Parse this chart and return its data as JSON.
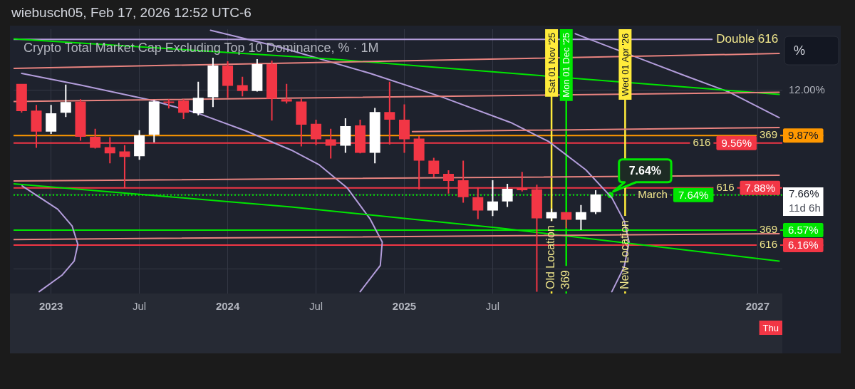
{
  "chart_data": {
    "type": "candlestick",
    "title": "Crypto Total Market Cap Excluding Top 10 Dominance, % · 1M",
    "subtitle": "wiebusch05, Feb 17, 2026 12:52 UTC-6",
    "ylabel": "%",
    "x": [
      "2022-11",
      "2022-12",
      "2023-01",
      "2023-02",
      "2023-03",
      "2023-04",
      "2023-05",
      "2023-06",
      "2023-07",
      "2023-08",
      "2023-09",
      "2023-10",
      "2023-11",
      "2023-12",
      "2024-01",
      "2024-02",
      "2024-03",
      "2024-04",
      "2024-05",
      "2024-06",
      "2024-07",
      "2024-08",
      "2024-09",
      "2024-10",
      "2024-11",
      "2024-12",
      "2025-01",
      "2025-02",
      "2025-03",
      "2025-04",
      "2025-05",
      "2025-06",
      "2025-07",
      "2025-08",
      "2025-09",
      "2025-10",
      "2025-11",
      "2025-12",
      "2026-01",
      "2026-02"
    ],
    "ohlc": [
      [
        12.33,
        12.33,
        10.9,
        10.96
      ],
      [
        10.99,
        11.26,
        9.36,
        10.04
      ],
      [
        10.04,
        11.26,
        9.94,
        10.86
      ],
      [
        10.89,
        12.29,
        10.69,
        11.4
      ],
      [
        11.43,
        11.54,
        9.65,
        9.82
      ],
      [
        9.82,
        10.16,
        9.33,
        9.36
      ],
      [
        9.39,
        9.8,
        8.76,
        9.14
      ],
      [
        9.22,
        9.47,
        7.87,
        9.0
      ],
      [
        9.03,
        10.1,
        8.89,
        9.88
      ],
      [
        9.91,
        11.5,
        9.59,
        11.43
      ],
      [
        11.43,
        11.54,
        11.09,
        11.4
      ],
      [
        11.47,
        11.54,
        10.6,
        10.89
      ],
      [
        10.86,
        12.44,
        10.76,
        11.61
      ],
      [
        11.64,
        13.8,
        11.16,
        13.34
      ],
      [
        13.34,
        13.59,
        11.61,
        12.22
      ],
      [
        12.26,
        12.71,
        11.68,
        11.96
      ],
      [
        11.96,
        13.71,
        11.93,
        13.42
      ],
      [
        13.42,
        13.63,
        10.53,
        11.57
      ],
      [
        11.54,
        12.33,
        11.33,
        11.43
      ],
      [
        11.43,
        11.57,
        9.42,
        10.34
      ],
      [
        10.38,
        10.57,
        9.47,
        9.71
      ],
      [
        9.71,
        10.16,
        8.94,
        9.45
      ],
      [
        9.45,
        10.63,
        9.16,
        10.28
      ],
      [
        10.31,
        10.57,
        9.14,
        9.16
      ],
      [
        9.16,
        11.12,
        8.76,
        10.92
      ],
      [
        10.92,
        12.44,
        9.5,
        10.57
      ],
      [
        10.57,
        11.29,
        9.16,
        9.71
      ],
      [
        9.74,
        9.85,
        7.83,
        8.86
      ],
      [
        8.86,
        8.97,
        8.24,
        8.37
      ],
      [
        8.37,
        8.5,
        7.69,
        8.12
      ],
      [
        8.14,
        8.86,
        7.39,
        7.57
      ],
      [
        7.57,
        7.9,
        6.89,
        7.15
      ],
      [
        7.15,
        8.14,
        6.98,
        7.43
      ],
      [
        7.43,
        8.02,
        7.26,
        7.85
      ],
      [
        7.87,
        8.44,
        7.76,
        7.8
      ],
      [
        7.83,
        7.99,
        5.04,
        6.91
      ],
      [
        6.91,
        7.21,
        6.83,
        7.1
      ],
      [
        7.1,
        7.1,
        6.63,
        6.87
      ],
      [
        6.87,
        7.32,
        6.57,
        7.1
      ],
      [
        7.1,
        7.8,
        7.04,
        7.66
      ]
    ],
    "colors": [
      "#f23645",
      "#f23645",
      "#ffffff",
      "#ffffff",
      "#f23645",
      "#f23645",
      "#f23645",
      "#f23645",
      "#ffffff",
      "#ffffff",
      "#f23645",
      "#f23645",
      "#ffffff",
      "#ffffff",
      "#f23645",
      "#f23645",
      "#ffffff",
      "#f23645",
      "#f23645",
      "#f23645",
      "#f23645",
      "#f23645",
      "#ffffff",
      "#f23645",
      "#ffffff",
      "#f23645",
      "#f23645",
      "#f23645",
      "#f23645",
      "#f23645",
      "#f23645",
      "#f23645",
      "#ffffff",
      "#ffffff",
      "#f23645",
      "#f23645",
      "#ffffff",
      "#f23645",
      "#ffffff",
      "#ffffff"
    ],
    "series": [
      {
        "type": "line",
        "color": "#e8837f",
        "x": [
          "2022-10-15",
          "2027-02-14"
        ],
        "values": [
          13.18,
          14.05
        ]
      },
      {
        "type": "line",
        "color": "#e8837f",
        "x": [
          "2022-10-15",
          "2027-02-14"
        ],
        "values": [
          11.43,
          11.89
        ]
      },
      {
        "type": "line",
        "color": "#e8837f",
        "x": [
          "2025-01-18",
          "2027-02-14"
        ],
        "values": [
          10.04,
          10.22
        ]
      },
      {
        "type": "line",
        "color": "#e8837f",
        "x": [
          "2022-10-15",
          "2027-02-14"
        ],
        "values": [
          8.12,
          8.32
        ]
      },
      {
        "type": "line",
        "color": "#e8837f",
        "x": [
          "2022-10-15",
          "2027-02-14"
        ],
        "values": [
          6.31,
          6.47
        ]
      },
      {
        "type": "line",
        "color": "#00e600",
        "x": [
          "2022-10-15",
          "2024-08-06",
          "2027-02-14"
        ],
        "values": [
          14.97,
          13.71,
          11.78
        ]
      },
      {
        "type": "line",
        "color": "#00e600",
        "x": [
          "2022-10-15",
          "2024-05-11",
          "2025-07-15",
          "2027-02-14"
        ],
        "values": [
          8.02,
          7.26,
          6.63,
          5.75
        ]
      },
      {
        "type": "line",
        "color": "#b39ddb",
        "x": [
          "2022-11-01",
          "2023-03-02",
          "2023-07-25",
          "2023-11-01",
          "2024-02-08",
          "2024-05-11",
          "2024-07-08",
          "2024-09-05",
          "2024-10-22",
          "2024-11-16",
          "2024-11-12",
          "2024-10-01"
        ],
        "values": [
          12.9,
          12.26,
          11.5,
          10.86,
          10.07,
          9.27,
          8.7,
          7.87,
          6.89,
          6.24,
          5.64,
          5.04
        ]
      },
      {
        "type": "line",
        "color": "#b39ddb",
        "x": [
          "2023-11-26",
          "2024-04-12",
          "2024-10-22",
          "2025-03-15",
          "2025-08-08",
          "2025-10-26",
          "2026-01-11",
          "2026-03-04",
          "2026-03-30",
          "2026-04-09",
          "2026-03-30",
          "2026-03-04"
        ],
        "values": [
          15.53,
          14.48,
          12.9,
          11.68,
          10.44,
          9.62,
          8.52,
          7.55,
          6.83,
          6.24,
          5.61,
          5.04
        ]
      },
      {
        "type": "line",
        "color": "#b39ddb",
        "x": [
          "2025-12-20",
          "2026-02-22",
          "2026-05-05",
          "2026-08-01",
          "2026-11-04",
          "2027-02-14"
        ],
        "values": [
          15.3,
          14.52,
          13.71,
          12.79,
          11.89,
          10.66
        ]
      },
      {
        "type": "line",
        "color": "#b39ddb",
        "x": [
          "2022-11-02",
          "2023-01-15",
          "2023-02-13",
          "2023-02-24",
          "2023-02-17",
          "2023-01-24",
          "2022-12-07"
        ],
        "values": [
          7.95,
          7.19,
          6.69,
          6.18,
          5.75,
          5.41,
          5.04
        ]
      },
      {
        "type": "line",
        "name": "Double 616",
        "color": "#b39ddb",
        "x": [
          "2022-10-15",
          "2026-09-28"
        ],
        "values": [
          14.93,
          14.93
        ]
      },
      {
        "type": "scatter",
        "color": "#00e600",
        "marker": "circle",
        "x": [
          "2026-03"
        ],
        "values": [
          7.64
        ],
        "value_labels": [
          "7.64%"
        ]
      }
    ],
    "ref_lines": [
      {
        "axis": "y",
        "value": 9.87,
        "label": "9.87%",
        "color": "#ff9800"
      },
      {
        "axis": "y",
        "value": 9.56,
        "label": "9.56%",
        "color": "#f23645"
      },
      {
        "axis": "y",
        "value": 7.88,
        "label": "7.88%",
        "color": "#f23645"
      },
      {
        "axis": "y",
        "value": 7.64,
        "label": "7.64%",
        "color": "#00e600",
        "line_style": "dotted"
      },
      {
        "axis": "y",
        "value": 6.57,
        "label": "6.57%",
        "color": "#00e600"
      },
      {
        "axis": "y",
        "value": 6.16,
        "label": "6.16%",
        "color": "#f23645"
      },
      {
        "axis": "x",
        "value": "2025-11",
        "label": "Sat 01 Nov '25",
        "color": "#ffeb3b"
      },
      {
        "axis": "x",
        "value": "2025-12",
        "label": "Mon 01 Dec '25",
        "color": "#00e600"
      },
      {
        "axis": "x",
        "value": "2026-04",
        "label": "Wed 01 Apr '26",
        "color": "#ffeb3b"
      }
    ],
    "annotations": [
      "369",
      "616",
      "616",
      "March",
      "369",
      "616",
      "Old Location",
      "369",
      "New Location",
      "11d 6h",
      "Thu"
    ],
    "xlim": [
      "2022-10-15",
      "2027-02-20"
    ],
    "xticks": [
      {
        "value": "2023-01",
        "label": "2023"
      },
      {
        "value": "2023-07",
        "label": "Jul"
      },
      {
        "value": "2024-01",
        "label": "2024"
      },
      {
        "value": "2024-07",
        "label": "Jul"
      },
      {
        "value": "2025-01",
        "label": "2025"
      },
      {
        "value": "2025-07",
        "label": "Jul"
      },
      {
        "value": "2027-01",
        "label": "2027"
      }
    ],
    "ylim": [
      5.0,
      15.6
    ],
    "yticks": [
      {
        "value": 12,
        "label": "12.00%"
      },
      {
        "value": 7.66,
        "label": "7.66%"
      },
      {
        "value": 5.56,
        "label": null
      }
    ],
    "log": true,
    "grid": true,
    "marker": "none"
  }
}
